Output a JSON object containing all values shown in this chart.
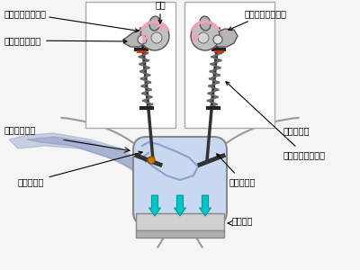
{
  "labels": {
    "koko_left": "ここを中心に回る",
    "rocker_arm": "ロッカーアーム",
    "cam": "カム",
    "koko_right": "ここを中心に回る",
    "inman": "インマニから",
    "muffler": "マフラーへ",
    "valve_spring": "バルブスプリング",
    "intake_valve": "吸気バルブ",
    "exhaust_valve": "排気バルブ",
    "piston": "ピストン"
  },
  "colors": {
    "bg": "#f5f5f5",
    "box_fill": "#ffffff",
    "box_stroke": "#aaaaaa",
    "cyl_fill": "#c8d8f0",
    "cyl_stroke": "#888888",
    "piston_fill": "#d0d0d0",
    "piston_base_fill": "#b0b0b0",
    "arrow_cyan": "#00c8c8",
    "intake_flow": "#7788bb",
    "spring_color": "#666666",
    "valve_stem": "#333333",
    "cam_fill": "#b8b8b8",
    "cam_stroke": "#555555",
    "pink": "#f0a0c0",
    "orange": "#cc7700",
    "text_color": "#000000",
    "arc_color": "#999999"
  }
}
